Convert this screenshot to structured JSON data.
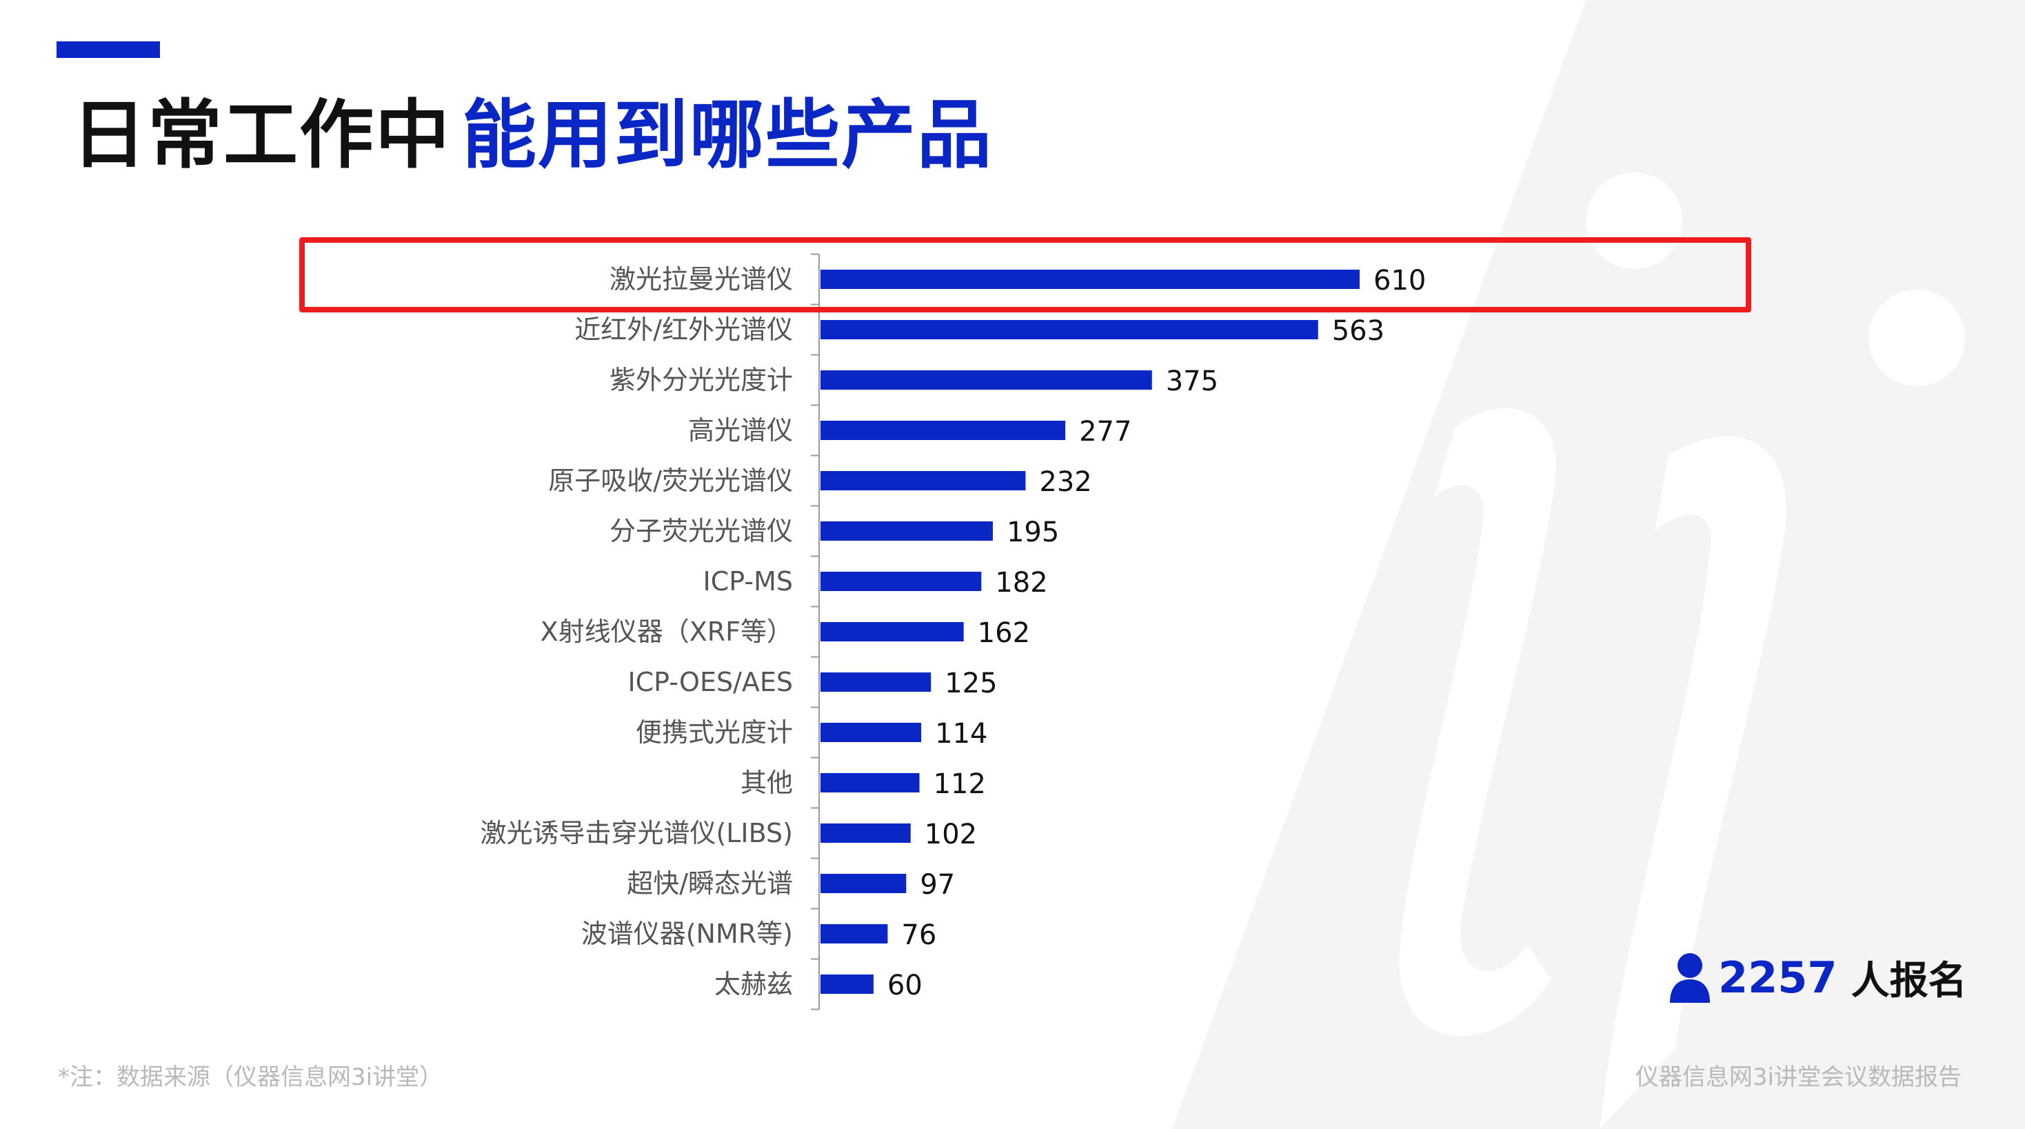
{
  "header": {
    "title_black": "日常工作中",
    "title_blue": "能用到哪些产品"
  },
  "colors": {
    "accent": "#0a26c4",
    "bar": "#0a26c4",
    "highlight": "#ee1c1c",
    "label": "#555555",
    "value": "#111111",
    "footer": "#b9b9b9"
  },
  "chart_data": {
    "type": "bar",
    "orientation": "horizontal",
    "categories": [
      "激光拉曼光谱仪",
      "近红外/红外光谱仪",
      "紫外分光光度计",
      "高光谱仪",
      "原子吸收/荧光光谱仪",
      "分子荧光光谱仪",
      "ICP-MS",
      "X射线仪器（XRF等）",
      "ICP-OES/AES",
      "便携式光度计",
      "其他",
      "激光诱导击穿光谱仪(LIBS)",
      "超快/瞬态光谱",
      "波谱仪器(NMR等)",
      "太赫兹"
    ],
    "values": [
      610,
      563,
      375,
      277,
      232,
      195,
      182,
      162,
      125,
      114,
      112,
      102,
      97,
      76,
      60
    ],
    "highlighted_category": "激光拉曼光谱仪",
    "xlim": [
      0,
      610
    ],
    "grid": false,
    "data_labels": true
  },
  "registrations": {
    "icon": "person-icon",
    "count": "2257",
    "unit": "人报名"
  },
  "footnote": "*注：数据来源（仪器信息网3i讲堂）",
  "footer_right": "仪器信息网3i讲堂会议数据报告"
}
